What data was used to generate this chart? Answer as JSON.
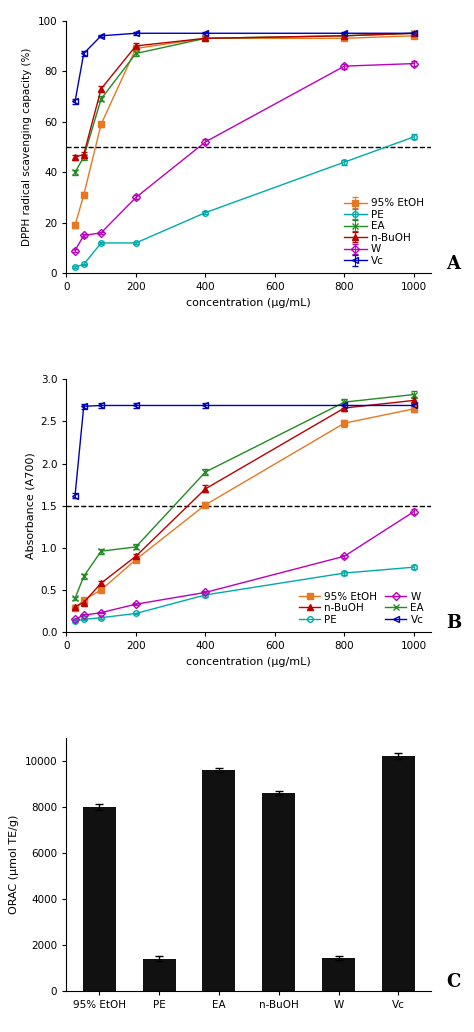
{
  "panel_A": {
    "xlabel": "concentration (μg/mL)",
    "ylabel": "DPPH radical scavenging capacity (%)",
    "xlim": [
      0,
      1050
    ],
    "ylim": [
      0,
      100
    ],
    "xticks": [
      0,
      200,
      400,
      600,
      800,
      1000
    ],
    "yticks": [
      0,
      20,
      40,
      60,
      80,
      100
    ],
    "hline": 50,
    "series": {
      "95% EtOH": {
        "x": [
          25,
          50,
          100,
          200,
          400,
          800,
          1000
        ],
        "y": [
          19,
          31,
          59,
          89,
          93,
          93,
          94
        ],
        "yerr": [
          1.0,
          1.0,
          1.0,
          1.0,
          0.5,
          0.5,
          0.5
        ],
        "color": "#E87722",
        "marker": "s",
        "markersize": 4,
        "hollow": false
      },
      "PE": {
        "x": [
          25,
          50,
          100,
          200,
          400,
          800,
          1000
        ],
        "y": [
          2.5,
          3.5,
          12,
          12,
          24,
          44,
          54
        ],
        "yerr": [
          0.3,
          0.3,
          0.5,
          0.5,
          0.5,
          1.0,
          1.0
        ],
        "color": "#00AAAA",
        "marker": "o",
        "markersize": 4,
        "hollow": true
      },
      "EA": {
        "x": [
          25,
          50,
          100,
          200,
          400,
          800,
          1000
        ],
        "y": [
          40,
          46,
          69,
          87,
          93,
          94,
          95
        ],
        "yerr": [
          1.0,
          1.0,
          1.0,
          1.0,
          0.5,
          0.5,
          0.5
        ],
        "color": "#228B22",
        "marker": "x",
        "markersize": 5,
        "hollow": false
      },
      "n-BuOH": {
        "x": [
          25,
          50,
          100,
          200,
          400,
          800,
          1000
        ],
        "y": [
          46,
          47,
          73,
          90,
          93,
          94,
          95
        ],
        "yerr": [
          1.0,
          1.0,
          1.0,
          1.0,
          0.5,
          0.5,
          0.5
        ],
        "color": "#BB0000",
        "marker": "^",
        "markersize": 4,
        "hollow": false
      },
      "W": {
        "x": [
          25,
          50,
          100,
          200,
          400,
          800,
          1000
        ],
        "y": [
          9,
          15,
          16,
          30,
          52,
          82,
          83
        ],
        "yerr": [
          0.5,
          0.5,
          0.5,
          0.8,
          1.0,
          1.0,
          1.0
        ],
        "color": "#BB00BB",
        "marker": "D",
        "markersize": 4,
        "hollow": true
      },
      "Vc": {
        "x": [
          25,
          50,
          100,
          200,
          400,
          800,
          1000
        ],
        "y": [
          68,
          87,
          94,
          95,
          95,
          95,
          95
        ],
        "yerr": [
          1.0,
          1.0,
          0.5,
          0.5,
          0.5,
          0.5,
          0.5
        ],
        "color": "#0000BB",
        "marker": "<",
        "markersize": 4,
        "hollow": true
      }
    },
    "series_order": [
      "95% EtOH",
      "PE",
      "EA",
      "n-BuOH",
      "W",
      "Vc"
    ]
  },
  "panel_B": {
    "xlabel": "concentration (μg/mL)",
    "ylabel": "Absorbance (A700)",
    "xlim": [
      0,
      1050
    ],
    "ylim": [
      0.0,
      3.0
    ],
    "xticks": [
      0,
      200,
      400,
      600,
      800,
      1000
    ],
    "yticks": [
      0.0,
      0.5,
      1.0,
      1.5,
      2.0,
      2.5,
      3.0
    ],
    "hline": 1.5,
    "series": {
      "95% EtOH": {
        "x": [
          25,
          50,
          100,
          200,
          400,
          800,
          1000
        ],
        "y": [
          0.28,
          0.38,
          0.5,
          0.86,
          1.51,
          2.48,
          2.65
        ],
        "yerr": [
          0.02,
          0.02,
          0.02,
          0.03,
          0.03,
          0.04,
          0.04
        ],
        "color": "#E87722",
        "marker": "s",
        "markersize": 4,
        "hollow": false
      },
      "PE": {
        "x": [
          25,
          50,
          100,
          200,
          400,
          800,
          1000
        ],
        "y": [
          0.13,
          0.15,
          0.17,
          0.22,
          0.44,
          0.7,
          0.77
        ],
        "yerr": [
          0.01,
          0.01,
          0.01,
          0.01,
          0.02,
          0.02,
          0.02
        ],
        "color": "#00AAAA",
        "marker": "o",
        "markersize": 4,
        "hollow": true
      },
      "EA": {
        "x": [
          25,
          50,
          100,
          200,
          400,
          800,
          1000
        ],
        "y": [
          0.4,
          0.66,
          0.96,
          1.01,
          1.9,
          2.73,
          2.82
        ],
        "yerr": [
          0.02,
          0.03,
          0.03,
          0.03,
          0.04,
          0.04,
          0.04
        ],
        "color": "#228B22",
        "marker": "x",
        "markersize": 5,
        "hollow": false
      },
      "n-BuOH": {
        "x": [
          25,
          50,
          100,
          200,
          400,
          800,
          1000
        ],
        "y": [
          0.3,
          0.35,
          0.58,
          0.9,
          1.7,
          2.66,
          2.75
        ],
        "yerr": [
          0.02,
          0.02,
          0.02,
          0.03,
          0.04,
          0.04,
          0.04
        ],
        "color": "#BB0000",
        "marker": "^",
        "markersize": 4,
        "hollow": false
      },
      "W": {
        "x": [
          25,
          50,
          100,
          200,
          400,
          800,
          1000
        ],
        "y": [
          0.15,
          0.2,
          0.23,
          0.33,
          0.47,
          0.9,
          1.43
        ],
        "yerr": [
          0.01,
          0.01,
          0.01,
          0.01,
          0.02,
          0.02,
          0.03
        ],
        "color": "#BB00BB",
        "marker": "D",
        "markersize": 4,
        "hollow": true
      },
      "Vc": {
        "x": [
          25,
          50,
          100,
          200,
          400,
          800,
          1000
        ],
        "y": [
          1.62,
          2.68,
          2.69,
          2.69,
          2.69,
          2.69,
          2.69
        ],
        "yerr": [
          0.03,
          0.03,
          0.03,
          0.03,
          0.03,
          0.03,
          0.03
        ],
        "color": "#0000BB",
        "marker": "<",
        "markersize": 4,
        "hollow": true
      }
    },
    "series_order": [
      "95% EtOH",
      "PE",
      "EA",
      "n-BuOH",
      "W",
      "Vc"
    ],
    "legend_order": [
      [
        "95% EtOH",
        "n-BuOH"
      ],
      [
        "PE",
        "W"
      ],
      [
        "EA",
        "Vc"
      ]
    ]
  },
  "panel_C": {
    "ylabel": "ORAC (μmol TE/g)",
    "categories": [
      "95% EtOH",
      "PE",
      "EA",
      "n-BuOH",
      "W",
      "Vc"
    ],
    "values": [
      8000,
      1400,
      9600,
      8600,
      1420,
      10200
    ],
    "yerr": [
      120,
      120,
      80,
      80,
      80,
      130
    ],
    "ylim": [
      0,
      11000
    ],
    "yticks": [
      0,
      2000,
      4000,
      6000,
      8000,
      10000
    ],
    "bar_color": "#111111"
  }
}
